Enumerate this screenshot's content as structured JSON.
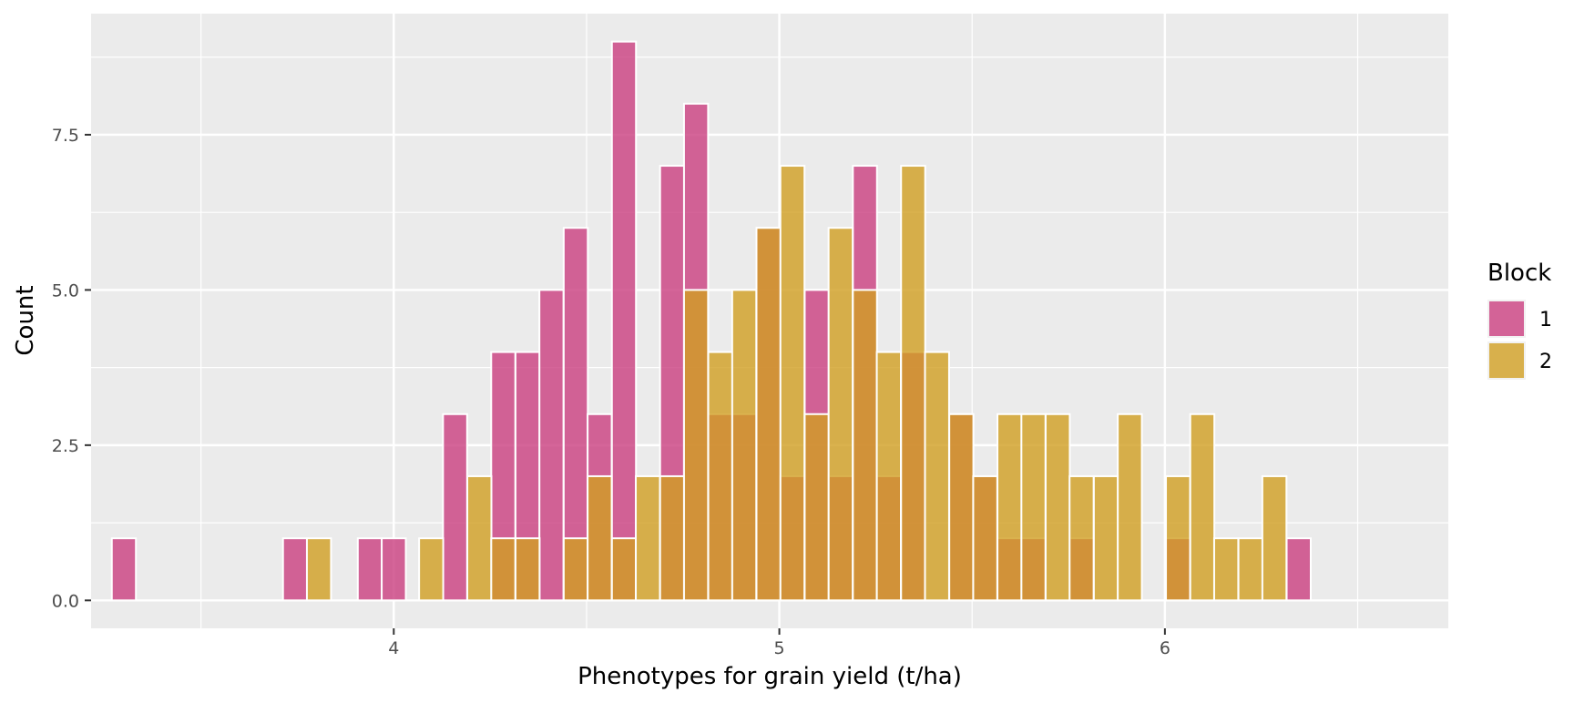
{
  "chart_data": {
    "type": "bar",
    "subtype": "overlapping histogram",
    "title": "",
    "xlabel": "Phenotypes for grain yield (t/ha)",
    "ylabel": "Count",
    "xlim": [
      3.215,
      6.735
    ],
    "ylim": [
      -0.45,
      9.45
    ],
    "x_ticks": [
      {
        "value": 4,
        "label": "4"
      },
      {
        "value": 5,
        "label": "5"
      },
      {
        "value": 6,
        "label": "6"
      }
    ],
    "y_ticks": [
      {
        "value": 0,
        "label": "0.0"
      },
      {
        "value": 2.5,
        "label": "2.5"
      },
      {
        "value": 5,
        "label": "5.0"
      },
      {
        "value": 7.5,
        "label": "7.5"
      }
    ],
    "grid": true,
    "legend_position": "right",
    "legend_title": "Block",
    "series": [
      {
        "name": "1",
        "color": "#CB3F7F",
        "bins": [
          {
            "x": 3.3,
            "count": 1
          },
          {
            "x": 3.744,
            "count": 1
          },
          {
            "x": 3.938,
            "count": 1
          },
          {
            "x": 4.0,
            "count": 1
          },
          {
            "x": 4.159,
            "count": 3
          },
          {
            "x": 4.284,
            "count": 4
          },
          {
            "x": 4.347,
            "count": 4
          },
          {
            "x": 4.409,
            "count": 5
          },
          {
            "x": 4.472,
            "count": 6
          },
          {
            "x": 4.534,
            "count": 3
          },
          {
            "x": 4.597,
            "count": 9
          },
          {
            "x": 4.722,
            "count": 7
          },
          {
            "x": 4.784,
            "count": 8
          },
          {
            "x": 4.847,
            "count": 3
          },
          {
            "x": 4.909,
            "count": 3
          },
          {
            "x": 4.972,
            "count": 6
          },
          {
            "x": 5.034,
            "count": 2
          },
          {
            "x": 5.097,
            "count": 5
          },
          {
            "x": 5.159,
            "count": 2
          },
          {
            "x": 5.222,
            "count": 7
          },
          {
            "x": 5.284,
            "count": 2
          },
          {
            "x": 5.347,
            "count": 4
          },
          {
            "x": 5.472,
            "count": 3
          },
          {
            "x": 5.534,
            "count": 2
          },
          {
            "x": 5.597,
            "count": 1
          },
          {
            "x": 5.659,
            "count": 1
          },
          {
            "x": 5.784,
            "count": 1
          },
          {
            "x": 6.034,
            "count": 1
          },
          {
            "x": 6.347,
            "count": 1
          }
        ]
      },
      {
        "name": "2",
        "color": "#D19F22",
        "bins": [
          {
            "x": 3.806,
            "count": 1
          },
          {
            "x": 4.097,
            "count": 1
          },
          {
            "x": 4.222,
            "count": 2
          },
          {
            "x": 4.284,
            "count": 1
          },
          {
            "x": 4.347,
            "count": 1
          },
          {
            "x": 4.472,
            "count": 1
          },
          {
            "x": 4.534,
            "count": 2
          },
          {
            "x": 4.597,
            "count": 1
          },
          {
            "x": 4.659,
            "count": 2
          },
          {
            "x": 4.722,
            "count": 2
          },
          {
            "x": 4.784,
            "count": 5
          },
          {
            "x": 4.847,
            "count": 4
          },
          {
            "x": 4.909,
            "count": 5
          },
          {
            "x": 4.972,
            "count": 6
          },
          {
            "x": 5.034,
            "count": 7
          },
          {
            "x": 5.097,
            "count": 3
          },
          {
            "x": 5.159,
            "count": 6
          },
          {
            "x": 5.222,
            "count": 5
          },
          {
            "x": 5.284,
            "count": 4
          },
          {
            "x": 5.347,
            "count": 7
          },
          {
            "x": 5.409,
            "count": 4
          },
          {
            "x": 5.472,
            "count": 3
          },
          {
            "x": 5.534,
            "count": 2
          },
          {
            "x": 5.597,
            "count": 3
          },
          {
            "x": 5.659,
            "count": 3
          },
          {
            "x": 5.722,
            "count": 3
          },
          {
            "x": 5.784,
            "count": 2
          },
          {
            "x": 5.847,
            "count": 2
          },
          {
            "x": 5.909,
            "count": 3
          },
          {
            "x": 6.034,
            "count": 2
          },
          {
            "x": 6.097,
            "count": 3
          },
          {
            "x": 6.159,
            "count": 1
          },
          {
            "x": 6.222,
            "count": 1
          },
          {
            "x": 6.284,
            "count": 2
          }
        ]
      }
    ]
  }
}
